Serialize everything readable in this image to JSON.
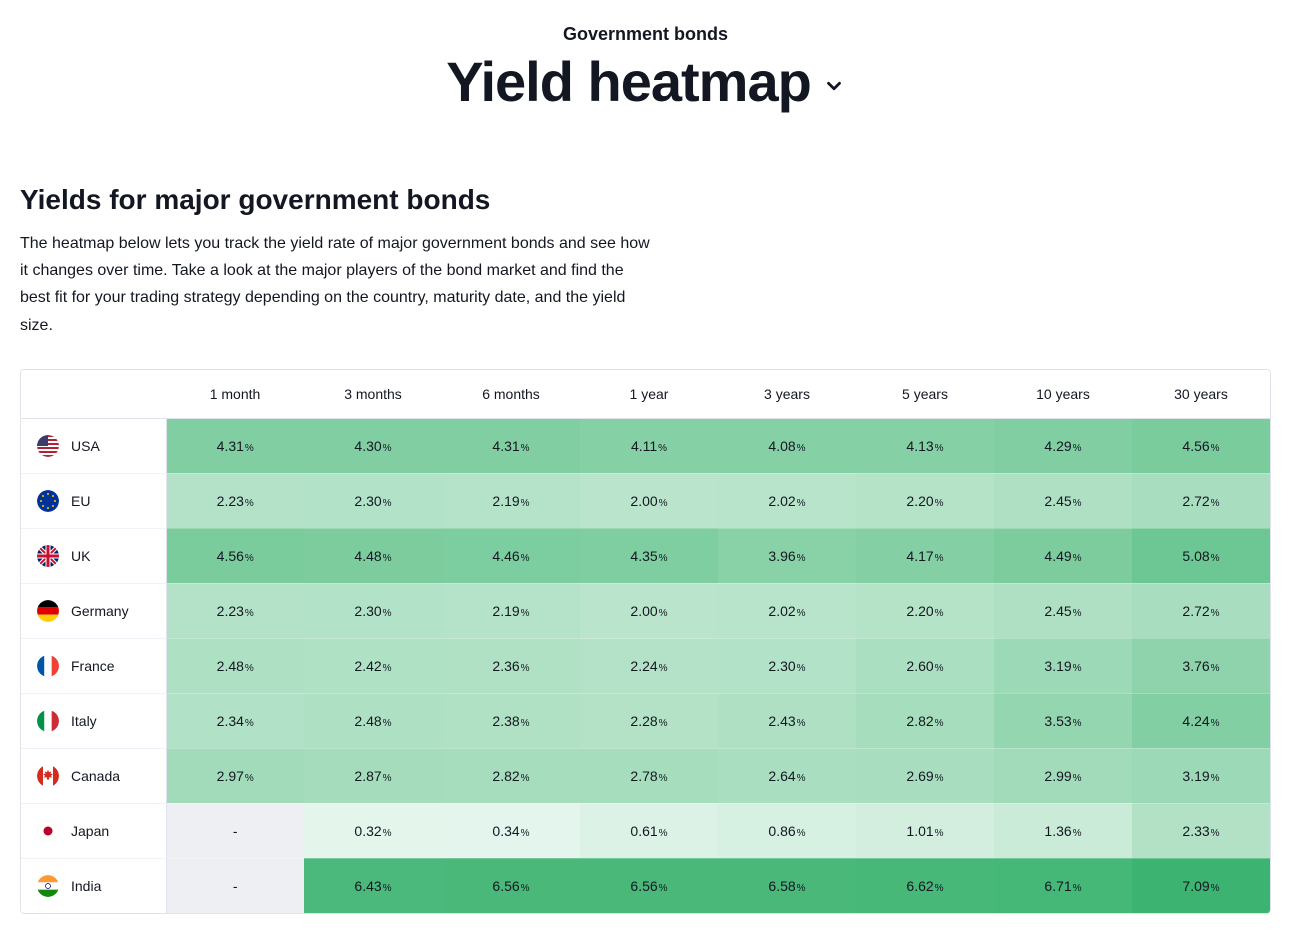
{
  "header": {
    "overline": "Government bonds",
    "title": "Yield heatmap"
  },
  "section": {
    "title": "Yields for major government bonds",
    "description": "The heatmap below lets you track the yield rate of major government bonds and see how it changes over time. Take a look at the major players of the bond market and find the best fit for your trading strategy depending on the country, maturity date, and the yield size."
  },
  "heatmap": {
    "type": "heatmap-table",
    "unit_suffix": "%",
    "empty_placeholder": "-",
    "empty_cell_color": "#edeff2",
    "value_min": 0.32,
    "value_max": 7.09,
    "color_scale": {
      "low": "#e4f5ec",
      "mid": "#8fd4ac",
      "high": "#3cb370"
    },
    "header_bg": "#ffffff",
    "border_color": "#e0e3eb",
    "font_size_value": 14,
    "font_size_unit": 10,
    "columns": [
      "1 month",
      "3 months",
      "6 months",
      "1 year",
      "3 years",
      "5 years",
      "10 years",
      "30 years"
    ],
    "rows": [
      {
        "country": "USA",
        "flag": "usa",
        "values": [
          4.31,
          4.3,
          4.31,
          4.11,
          4.08,
          4.13,
          4.29,
          4.56
        ]
      },
      {
        "country": "EU",
        "flag": "eu",
        "values": [
          2.23,
          2.3,
          2.19,
          2.0,
          2.02,
          2.2,
          2.45,
          2.72
        ]
      },
      {
        "country": "UK",
        "flag": "uk",
        "values": [
          4.56,
          4.48,
          4.46,
          4.35,
          3.96,
          4.17,
          4.49,
          5.08
        ]
      },
      {
        "country": "Germany",
        "flag": "germany",
        "values": [
          2.23,
          2.3,
          2.19,
          2.0,
          2.02,
          2.2,
          2.45,
          2.72
        ]
      },
      {
        "country": "France",
        "flag": "france",
        "values": [
          2.48,
          2.42,
          2.36,
          2.24,
          2.3,
          2.6,
          3.19,
          3.76
        ]
      },
      {
        "country": "Italy",
        "flag": "italy",
        "values": [
          2.34,
          2.48,
          2.38,
          2.28,
          2.43,
          2.82,
          3.53,
          4.24
        ]
      },
      {
        "country": "Canada",
        "flag": "canada",
        "values": [
          2.97,
          2.87,
          2.82,
          2.78,
          2.64,
          2.69,
          2.99,
          3.19
        ]
      },
      {
        "country": "Japan",
        "flag": "japan",
        "values": [
          null,
          0.32,
          0.34,
          0.61,
          0.86,
          1.01,
          1.36,
          2.33
        ]
      },
      {
        "country": "India",
        "flag": "india",
        "values": [
          null,
          6.43,
          6.56,
          6.56,
          6.58,
          6.62,
          6.71,
          7.09
        ]
      }
    ]
  },
  "flags": {
    "usa": "<svg viewBox='0 0 22 22'><defs><clipPath id='c-usa'><circle cx='11' cy='11' r='11'/></clipPath></defs><g clip-path='url(#c-usa)'><rect width='22' height='22' fill='#b22234'/><g fill='#fff'><rect y='2' width='22' height='2'/><rect y='6' width='22' height='2'/><rect y='10' width='22' height='2'/><rect y='14' width='22' height='2'/><rect y='18' width='22' height='2'/></g><rect width='11' height='11' fill='#3c3b6e'/></g></svg>",
    "eu": "<svg viewBox='0 0 22 22'><circle cx='11' cy='11' r='11' fill='#003399'/><g fill='#ffcc00'><circle cx='11' cy='4' r='1'/><circle cx='11' cy='18' r='1'/><circle cx='4' cy='11' r='1'/><circle cx='18' cy='11' r='1'/><circle cx='6' cy='6' r='1'/><circle cx='16' cy='6' r='1'/><circle cx='6' cy='16' r='1'/><circle cx='16' cy='16' r='1'/></g></svg>",
    "uk": "<svg viewBox='0 0 22 22'><defs><clipPath id='c-uk'><circle cx='11' cy='11' r='11'/></clipPath></defs><g clip-path='url(#c-uk)'><rect width='22' height='22' fill='#012169'/><path d='M0 0L22 22M22 0L0 22' stroke='#fff' stroke-width='4'/><path d='M0 0L22 22M22 0L0 22' stroke='#c8102e' stroke-width='2'/><path d='M11 0V22M0 11H22' stroke='#fff' stroke-width='5'/><path d='M11 0V22M0 11H22' stroke='#c8102e' stroke-width='3'/></g></svg>",
    "germany": "<svg viewBox='0 0 22 22'><defs><clipPath id='c-de'><circle cx='11' cy='11' r='11'/></clipPath></defs><g clip-path='url(#c-de)'><rect width='22' height='7.33' fill='#000'/><rect y='7.33' width='22' height='7.33' fill='#dd0000'/><rect y='14.66' width='22' height='7.34' fill='#ffce00'/></g></svg>",
    "france": "<svg viewBox='0 0 22 22'><defs><clipPath id='c-fr'><circle cx='11' cy='11' r='11'/></clipPath></defs><g clip-path='url(#c-fr)'><rect width='7.33' height='22' fill='#0055a4'/><rect x='7.33' width='7.33' height='22' fill='#fff'/><rect x='14.66' width='7.34' height='22' fill='#ef4135'/></g></svg>",
    "italy": "<svg viewBox='0 0 22 22'><defs><clipPath id='c-it'><circle cx='11' cy='11' r='11'/></clipPath></defs><g clip-path='url(#c-it)'><rect width='7.33' height='22' fill='#009246'/><rect x='7.33' width='7.33' height='22' fill='#fff'/><rect x='14.66' width='7.34' height='22' fill='#ce2b37'/></g></svg>",
    "canada": "<svg viewBox='0 0 22 22'><defs><clipPath id='c-ca'><circle cx='11' cy='11' r='11'/></clipPath></defs><g clip-path='url(#c-ca)'><rect width='22' height='22' fill='#fff'/><rect width='6' height='22' fill='#d52b1e'/><rect x='16' width='6' height='22' fill='#d52b1e'/><path d='M11 5l1.2 2.4 2.2-1-0.9 2.3 2.5 0.3-2 1.6 1 2.4-2.6-1.1-0.4 2.6h-2l-0.4-2.6-2.6 1.1 1-2.4-2-1.6 2.5-0.3-0.9-2.3 2.2 1z' fill='#d52b1e'/></g></svg>",
    "japan": "<svg viewBox='0 0 22 22'><circle cx='11' cy='11' r='11' fill='#fff' stroke='#e5e5e5' stroke-width='0.5'/><circle cx='11' cy='11' r='4.5' fill='#bc002d'/></svg>",
    "india": "<svg viewBox='0 0 22 22'><defs><clipPath id='c-in'><circle cx='11' cy='11' r='11'/></clipPath></defs><g clip-path='url(#c-in)'><rect width='22' height='7.33' fill='#ff9933'/><rect y='7.33' width='22' height='7.33' fill='#fff'/><rect y='14.66' width='22' height='7.34' fill='#138808'/><circle cx='11' cy='11' r='2.5' fill='none' stroke='#000080' stroke-width='0.7'/></g></svg>"
  }
}
